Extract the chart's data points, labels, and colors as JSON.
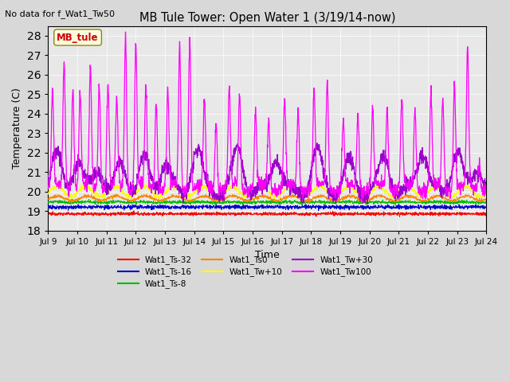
{
  "title": "MB Tule Tower: Open Water 1 (3/19/14-now)",
  "subtitle": "No data for f_Wat1_Tw50",
  "xlabel": "Time",
  "ylabel": "Temperature (C)",
  "ylim": [
    18.0,
    28.5
  ],
  "yticks": [
    18.0,
    19.0,
    20.0,
    21.0,
    22.0,
    23.0,
    24.0,
    25.0,
    26.0,
    27.0,
    28.0
  ],
  "x_tick_labels": [
    "Jul 9",
    "Jul 10",
    "Jul 11",
    "Jul 12",
    "Jul 13",
    "Jul 14",
    "Jul 15",
    "Jul 16",
    "Jul 17",
    "Jul 18",
    "Jul 19",
    "Jul 20",
    "Jul 21",
    "Jul 22",
    "Jul 23",
    "Jul 24"
  ],
  "legend_entries": [
    {
      "label": "Wat1_Ts-32",
      "color": "#ff0000"
    },
    {
      "label": "Wat1_Ts-16",
      "color": "#0000cc"
    },
    {
      "label": "Wat1_Ts-8",
      "color": "#00bb00"
    },
    {
      "label": "Wat1_Ts0",
      "color": "#ff8800"
    },
    {
      "label": "Wat1_Tw+10",
      "color": "#ffff00"
    },
    {
      "label": "Wat1_Tw+30",
      "color": "#9900cc"
    },
    {
      "label": "Wat1_Tw100",
      "color": "#ff00ff"
    }
  ],
  "inset_label": "MB_tule",
  "inset_label_color": "#cc0000",
  "fig_bg_color": "#d8d8d8",
  "plot_bg_color": "#e8e8e8"
}
